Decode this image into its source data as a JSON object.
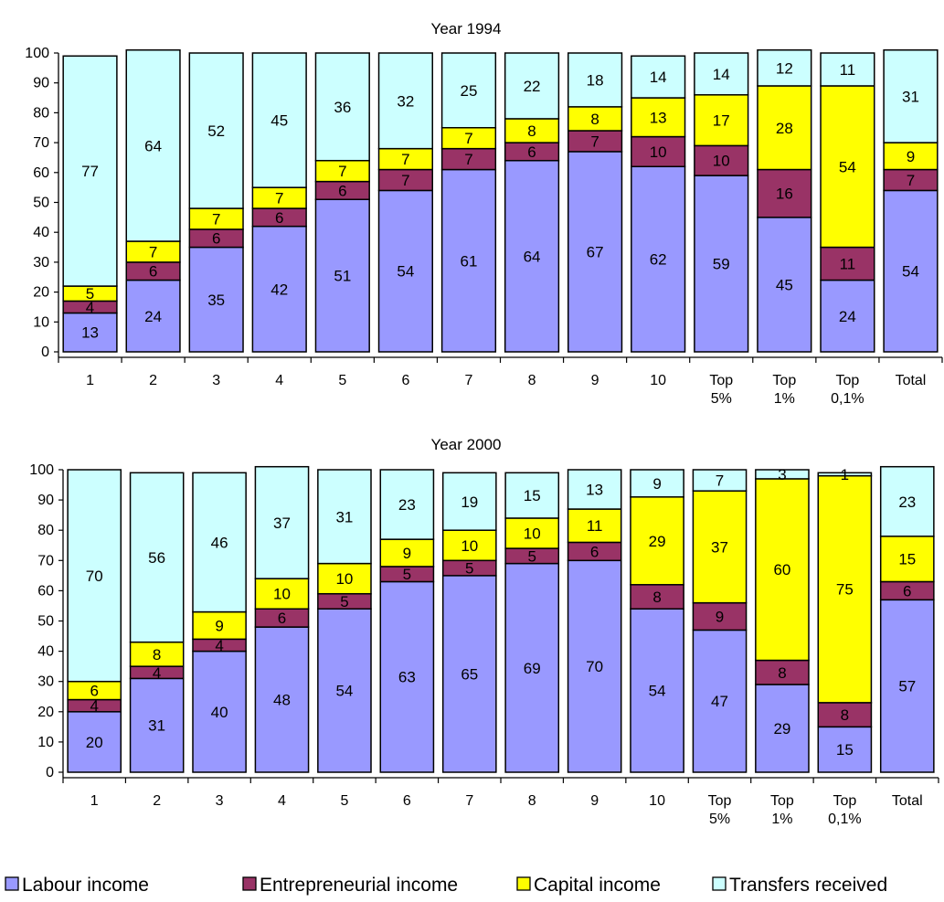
{
  "chart_data": [
    {
      "type": "bar",
      "stacked": true,
      "title": "Year 1994",
      "categories": [
        [
          "1"
        ],
        [
          "2"
        ],
        [
          "3"
        ],
        [
          "4"
        ],
        [
          "5"
        ],
        [
          "6"
        ],
        [
          "7"
        ],
        [
          "8"
        ],
        [
          "9"
        ],
        [
          "10"
        ],
        [
          "Top",
          "5%"
        ],
        [
          "Top",
          "1%"
        ],
        [
          "Top",
          "0,1%"
        ],
        [
          "Total"
        ]
      ],
      "ylim": [
        0,
        100
      ],
      "yticks": [
        0,
        10,
        20,
        30,
        40,
        50,
        60,
        70,
        80,
        90,
        100
      ],
      "series": [
        {
          "name": "Labour income",
          "color": "#9999ff",
          "values": [
            13,
            24,
            35,
            42,
            51,
            54,
            61,
            64,
            67,
            62,
            59,
            45,
            24,
            54
          ]
        },
        {
          "name": "Entrepreneurial income",
          "color": "#993366",
          "values": [
            4,
            6,
            6,
            6,
            6,
            7,
            7,
            6,
            7,
            10,
            10,
            16,
            11,
            7
          ]
        },
        {
          "name": "Capital income",
          "color": "#ffff00",
          "values": [
            5,
            7,
            7,
            7,
            7,
            7,
            7,
            8,
            8,
            13,
            17,
            28,
            54,
            9
          ]
        },
        {
          "name": "Transfers received",
          "color": "#ccffff",
          "values": [
            77,
            64,
            52,
            45,
            36,
            32,
            25,
            22,
            18,
            14,
            14,
            12,
            11,
            31
          ]
        }
      ]
    },
    {
      "type": "bar",
      "stacked": true,
      "title": "Year 2000",
      "categories": [
        [
          "1"
        ],
        [
          "2"
        ],
        [
          "3"
        ],
        [
          "4"
        ],
        [
          "5"
        ],
        [
          "6"
        ],
        [
          "7"
        ],
        [
          "8"
        ],
        [
          "9"
        ],
        [
          "10"
        ],
        [
          "Top",
          "5%"
        ],
        [
          "Top",
          "1%"
        ],
        [
          "Top",
          "0,1%"
        ],
        [
          "Total"
        ]
      ],
      "ylim": [
        0,
        100
      ],
      "yticks": [
        0,
        10,
        20,
        30,
        40,
        50,
        60,
        70,
        80,
        90,
        100
      ],
      "series": [
        {
          "name": "Labour income",
          "color": "#9999ff",
          "values": [
            20,
            31,
            40,
            48,
            54,
            63,
            65,
            69,
            70,
            54,
            47,
            29,
            15,
            57
          ]
        },
        {
          "name": "Entrepreneurial income",
          "color": "#993366",
          "values": [
            4,
            4,
            4,
            6,
            5,
            5,
            5,
            5,
            6,
            8,
            9,
            8,
            8,
            6
          ]
        },
        {
          "name": "Capital income",
          "color": "#ffff00",
          "values": [
            6,
            8,
            9,
            10,
            10,
            9,
            10,
            10,
            11,
            29,
            37,
            60,
            75,
            15
          ]
        },
        {
          "name": "Transfers received",
          "color": "#ccffff",
          "values": [
            70,
            56,
            46,
            37,
            31,
            23,
            19,
            15,
            13,
            9,
            7,
            3,
            1,
            23
          ]
        }
      ]
    }
  ],
  "legend": {
    "placement": "bottom",
    "items": [
      "Labour income",
      "Entrepreneurial income",
      "Capital income",
      "Transfers received"
    ]
  }
}
